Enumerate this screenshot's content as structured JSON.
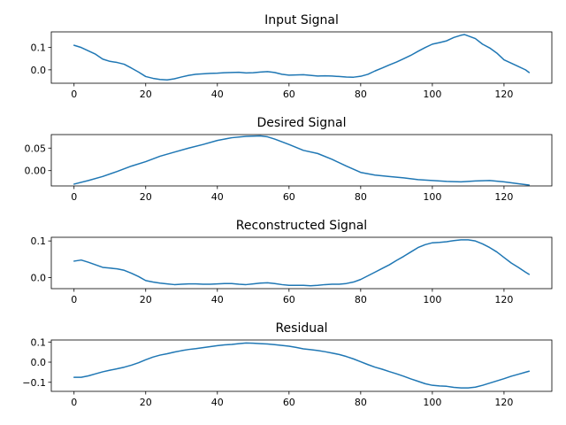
{
  "figure": {
    "background": "#ffffff",
    "line_color": "#1f77b4"
  },
  "chart_data": [
    {
      "type": "line",
      "title": "Input Signal",
      "xlabel": "",
      "ylabel": "",
      "xlim": [
        -6.35,
        133.35
      ],
      "ylim": [
        -0.06,
        0.17
      ],
      "xticks": [
        0,
        20,
        40,
        60,
        80,
        100,
        120
      ],
      "yticks": [
        0.0,
        0.1
      ],
      "ytick_labels": [
        "0.0",
        "0.1"
      ],
      "grid": false,
      "series": [
        {
          "x": [
            0,
            2,
            4,
            6,
            8,
            10,
            12,
            14,
            16,
            18,
            20,
            22,
            24,
            26,
            28,
            30,
            32,
            34,
            36,
            38,
            40,
            42,
            44,
            46,
            48,
            50,
            52,
            54,
            56,
            58,
            60,
            62,
            64,
            66,
            68,
            70,
            72,
            74,
            76,
            78,
            80,
            82,
            84,
            86,
            88,
            90,
            92,
            94,
            96,
            98,
            100,
            102,
            104,
            106,
            108,
            109,
            110,
            112,
            114,
            116,
            118,
            120,
            122,
            124,
            126,
            127
          ],
          "y": [
            0.11,
            0.1,
            0.085,
            0.07,
            0.048,
            0.038,
            0.033,
            0.025,
            0.008,
            -0.01,
            -0.03,
            -0.038,
            -0.043,
            -0.045,
            -0.04,
            -0.032,
            -0.025,
            -0.02,
            -0.018,
            -0.016,
            -0.015,
            -0.013,
            -0.012,
            -0.011,
            -0.014,
            -0.013,
            -0.01,
            -0.008,
            -0.012,
            -0.02,
            -0.024,
            -0.023,
            -0.022,
            -0.025,
            -0.028,
            -0.027,
            -0.028,
            -0.03,
            -0.032,
            -0.033,
            -0.029,
            -0.02,
            -0.005,
            0.008,
            0.022,
            0.035,
            0.05,
            0.065,
            0.083,
            0.1,
            0.115,
            0.122,
            0.13,
            0.145,
            0.155,
            0.158,
            0.152,
            0.14,
            0.115,
            0.098,
            0.075,
            0.045,
            0.03,
            0.015,
            0.0,
            -0.012
          ]
        }
      ]
    },
    {
      "type": "line",
      "title": "Desired Signal",
      "xlabel": "",
      "ylabel": "",
      "xlim": [
        -6.35,
        133.35
      ],
      "ylim": [
        -0.034,
        0.08
      ],
      "xticks": [
        0,
        20,
        40,
        60,
        80,
        100,
        120
      ],
      "yticks": [
        0.0,
        0.05
      ],
      "ytick_labels": [
        "0.00",
        "0.05"
      ],
      "grid": false,
      "series": [
        {
          "x": [
            0,
            4,
            8,
            12,
            16,
            20,
            24,
            28,
            32,
            36,
            40,
            44,
            48,
            52,
            54,
            56,
            60,
            64,
            68,
            72,
            76,
            80,
            84,
            88,
            92,
            96,
            100,
            104,
            108,
            112,
            116,
            120,
            124,
            127
          ],
          "y": [
            -0.03,
            -0.022,
            -0.013,
            -0.002,
            0.01,
            0.02,
            0.032,
            0.041,
            0.05,
            0.058,
            0.067,
            0.073,
            0.076,
            0.077,
            0.075,
            0.07,
            0.058,
            0.045,
            0.038,
            0.025,
            0.01,
            -0.004,
            -0.01,
            -0.013,
            -0.016,
            -0.02,
            -0.022,
            -0.024,
            -0.025,
            -0.023,
            -0.022,
            -0.025,
            -0.029,
            -0.032
          ]
        }
      ]
    },
    {
      "type": "line",
      "title": "Reconstructed Signal",
      "xlabel": "",
      "ylabel": "",
      "xlim": [
        -6.35,
        133.35
      ],
      "ylim": [
        -0.03,
        0.11
      ],
      "xticks": [
        0,
        20,
        40,
        60,
        80,
        100,
        120
      ],
      "yticks": [
        0.0,
        0.1
      ],
      "ytick_labels": [
        "0.0",
        "0.1"
      ],
      "grid": false,
      "series": [
        {
          "x": [
            0,
            2,
            4,
            6,
            8,
            10,
            12,
            14,
            16,
            18,
            20,
            22,
            24,
            26,
            28,
            30,
            32,
            34,
            36,
            38,
            40,
            42,
            44,
            46,
            48,
            50,
            52,
            54,
            56,
            58,
            60,
            62,
            64,
            66,
            68,
            70,
            72,
            74,
            76,
            78,
            80,
            82,
            84,
            86,
            88,
            90,
            92,
            94,
            96,
            98,
            100,
            102,
            104,
            106,
            108,
            110,
            112,
            114,
            116,
            118,
            120,
            122,
            124,
            126,
            127
          ],
          "y": [
            0.045,
            0.048,
            0.042,
            0.035,
            0.028,
            0.026,
            0.024,
            0.02,
            0.012,
            0.003,
            -0.008,
            -0.012,
            -0.015,
            -0.017,
            -0.019,
            -0.018,
            -0.017,
            -0.017,
            -0.018,
            -0.018,
            -0.017,
            -0.016,
            -0.016,
            -0.018,
            -0.019,
            -0.017,
            -0.015,
            -0.014,
            -0.016,
            -0.019,
            -0.021,
            -0.021,
            -0.021,
            -0.022,
            -0.021,
            -0.019,
            -0.018,
            -0.018,
            -0.016,
            -0.012,
            -0.005,
            0.005,
            0.015,
            0.025,
            0.035,
            0.047,
            0.058,
            0.07,
            0.082,
            0.09,
            0.095,
            0.096,
            0.098,
            0.101,
            0.103,
            0.103,
            0.1,
            0.092,
            0.082,
            0.07,
            0.055,
            0.04,
            0.028,
            0.015,
            0.009
          ]
        }
      ]
    },
    {
      "type": "line",
      "title": "Residual",
      "xlabel": "",
      "ylabel": "",
      "xlim": [
        -6.35,
        133.35
      ],
      "ylim": [
        -0.145,
        0.11
      ],
      "xticks": [
        0,
        20,
        40,
        60,
        80,
        100,
        120
      ],
      "yticks": [
        -0.1,
        0.0,
        0.1
      ],
      "ytick_labels": [
        "−0.1",
        "0.0",
        "0.1"
      ],
      "grid": false,
      "series": [
        {
          "x": [
            0,
            2,
            4,
            6,
            8,
            10,
            12,
            14,
            16,
            18,
            20,
            22,
            24,
            26,
            28,
            30,
            32,
            34,
            36,
            38,
            40,
            42,
            44,
            46,
            48,
            50,
            52,
            54,
            56,
            58,
            60,
            62,
            64,
            66,
            68,
            70,
            72,
            74,
            76,
            78,
            80,
            82,
            84,
            86,
            88,
            90,
            92,
            94,
            96,
            98,
            100,
            102,
            104,
            106,
            108,
            110,
            112,
            114,
            116,
            118,
            120,
            122,
            124,
            126,
            127
          ],
          "y": [
            -0.075,
            -0.075,
            -0.068,
            -0.058,
            -0.048,
            -0.04,
            -0.033,
            -0.025,
            -0.015,
            -0.003,
            0.012,
            0.025,
            0.035,
            0.042,
            0.05,
            0.057,
            0.063,
            0.067,
            0.072,
            0.077,
            0.082,
            0.086,
            0.088,
            0.092,
            0.095,
            0.094,
            0.092,
            0.09,
            0.087,
            0.083,
            0.079,
            0.073,
            0.066,
            0.062,
            0.058,
            0.052,
            0.045,
            0.038,
            0.028,
            0.016,
            0.002,
            -0.012,
            -0.025,
            -0.035,
            -0.047,
            -0.058,
            -0.07,
            -0.083,
            -0.095,
            -0.107,
            -0.115,
            -0.118,
            -0.12,
            -0.125,
            -0.128,
            -0.128,
            -0.124,
            -0.115,
            -0.104,
            -0.093,
            -0.082,
            -0.07,
            -0.06,
            -0.05,
            -0.045
          ]
        }
      ]
    }
  ]
}
